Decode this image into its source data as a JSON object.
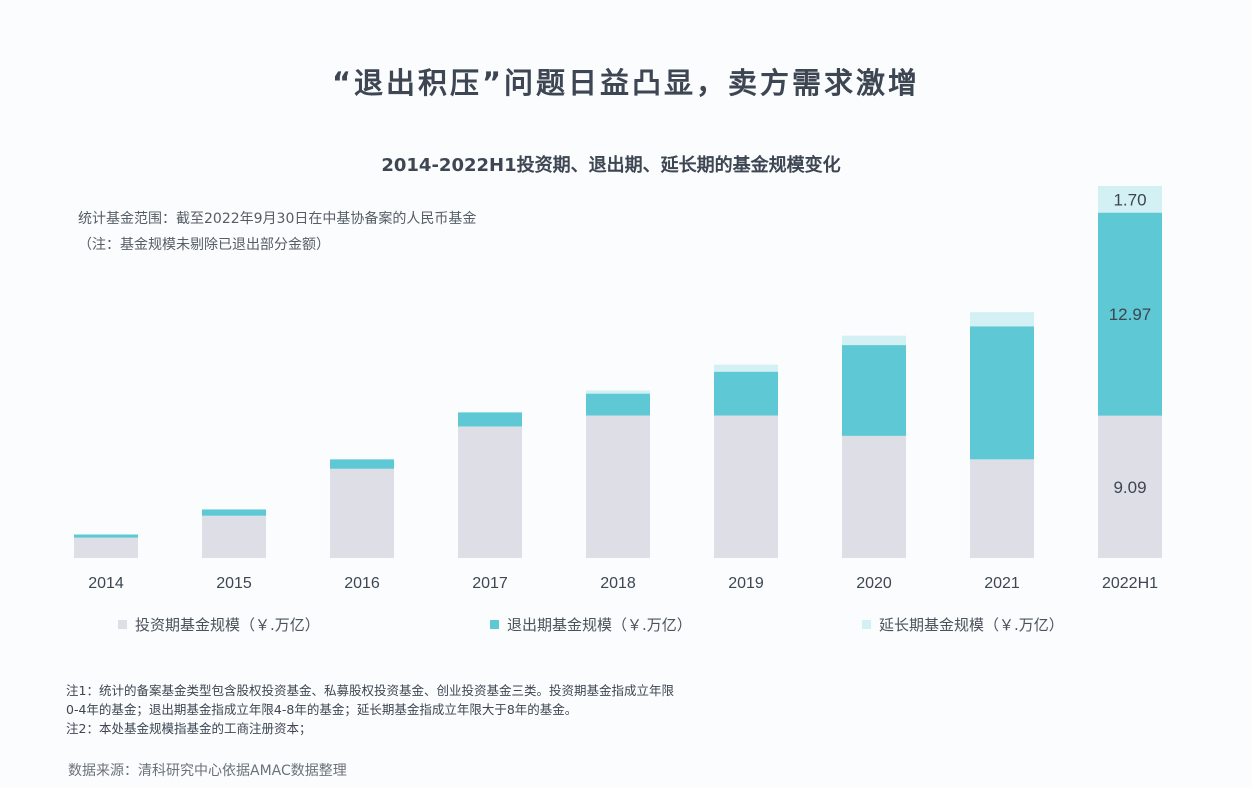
{
  "main_title": "“退出积压”问题日益凸显，卖方需求激增",
  "chart_data": {
    "type": "bar",
    "stacked": true,
    "title": "2014-2022H1投资期、退出期、延长期的基金规模变化",
    "categories": [
      "2014",
      "2015",
      "2016",
      "2017",
      "2018",
      "2019",
      "2020",
      "2021",
      "2022H1"
    ],
    "series": [
      {
        "name": "投资期基金规模（￥.万亿）",
        "color": "#dedfe6",
        "values": [
          1.3,
          2.7,
          5.7,
          8.4,
          9.1,
          9.1,
          7.8,
          6.3,
          9.09
        ]
      },
      {
        "name": "退出期基金规模（￥.万亿）",
        "color": "#5ec8d4",
        "values": [
          0.2,
          0.4,
          0.6,
          0.9,
          1.4,
          2.8,
          5.8,
          8.5,
          12.97
        ]
      },
      {
        "name": "延长期基金规模（￥.万亿）",
        "color": "#d3f0f4",
        "values": [
          0.0,
          0.0,
          0.0,
          0.0,
          0.2,
          0.45,
          0.6,
          0.9,
          1.7
        ]
      }
    ],
    "data_labels": [
      {
        "category": "2022H1",
        "series": 0,
        "text": "9.09"
      },
      {
        "category": "2022H1",
        "series": 1,
        "text": "12.97"
      },
      {
        "category": "2022H1",
        "series": 2,
        "text": "1.70"
      }
    ],
    "ylim": [
      0,
      23.76
    ],
    "grid": false,
    "legend_position": "bottom"
  },
  "scope_note": {
    "line1": "统计基金范围：截至2022年9月30日在中基协备案的人民币基金",
    "line2": "（注：基金规模未剔除已退出部分金额）"
  },
  "notes": {
    "line1": "注1：统计的备案基金类型包含股权投资基金、私募股权投资基金、创业投资基金三类。投资期基金指成立年限",
    "line2": "0-4年的基金；退出期基金指成立年限4-8年的基金；延长期基金指成立年限大于8年的基金。",
    "line3": "注2：本处基金规模指基金的工商注册资本；"
  },
  "source": "数据来源：清科研究中心依据AMAC数据整理"
}
